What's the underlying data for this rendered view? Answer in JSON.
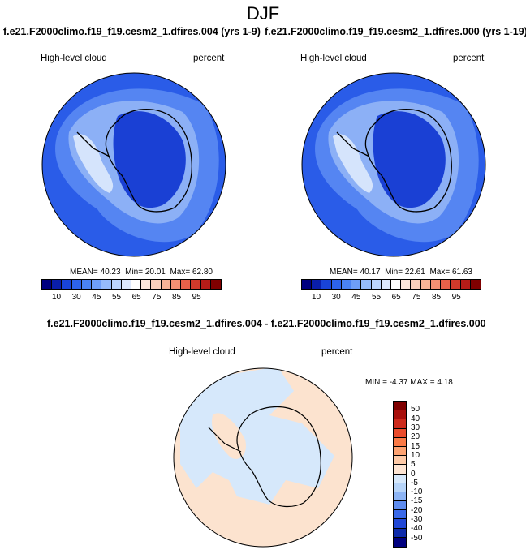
{
  "main_title": "DJF",
  "panels": [
    {
      "title": "f.e21.F2000climo.f19_f19.cesm2_1.dfires.004 (yrs 1-9)",
      "variable": "High-level cloud",
      "units": "percent",
      "mean": "40.23",
      "min": "20.01",
      "max": "62.80"
    },
    {
      "title": "f.e21.F2000climo.f19_f19.cesm2_1.dfires.000 (yrs 1-19)",
      "variable": "High-level cloud",
      "units": "percent",
      "mean": "40.17",
      "min": "22.61",
      "max": "61.63"
    }
  ],
  "labels": {
    "mean": "MEAN=",
    "min": "Min=",
    "max": "Max="
  },
  "diff_panel": {
    "title": "f.e21.F2000climo.f19_f19.cesm2_1.dfires.004 - f.e21.F2000climo.f19_f19.cesm2_1.dfires.000",
    "variable": "High-level cloud",
    "units": "percent",
    "stats": "MIN = -4.37 MAX =  4.18"
  },
  "colorbar_top": {
    "colors": [
      "#00007f",
      "#0a1eaa",
      "#1944d8",
      "#2d63ec",
      "#4a83f4",
      "#6e9ef8",
      "#96bbfb",
      "#bcd4fc",
      "#dde8fd",
      "#ffffff",
      "#fde7dc",
      "#fbd0bb",
      "#f8b397",
      "#f48f73",
      "#e8614a",
      "#d23a2b",
      "#b41c18",
      "#7f0000"
    ],
    "ticks": [
      "10",
      "30",
      "45",
      "55",
      "65",
      "75",
      "85",
      "95"
    ]
  },
  "colorbar_diff": {
    "colors": [
      "#7f0000",
      "#a8100c",
      "#cd2a1c",
      "#ea4b2b",
      "#fb7a46",
      "#fda271",
      "#fdc9a6",
      "#fde4d2",
      "#d6e8fb",
      "#b6d4f9",
      "#8cb4f5",
      "#5f8df0",
      "#3a69e8",
      "#2147d6",
      "#0e2baa",
      "#00007f"
    ],
    "ticks": [
      "50",
      "40",
      "30",
      "20",
      "15",
      "10",
      "5",
      "0",
      "-5",
      "-10",
      "-15",
      "-20",
      "-30",
      "-40",
      "-50"
    ]
  },
  "map_colors": {
    "ocean_base": "#2a5ce8",
    "ocean_light": "#5585f2",
    "ocean_lighter": "#8cb0f6",
    "cloud_high": "#d5e4fc",
    "interior_dark": "#1a40d4",
    "diff_pos": "#fce3cf",
    "diff_neg": "#d6e8fb"
  }
}
